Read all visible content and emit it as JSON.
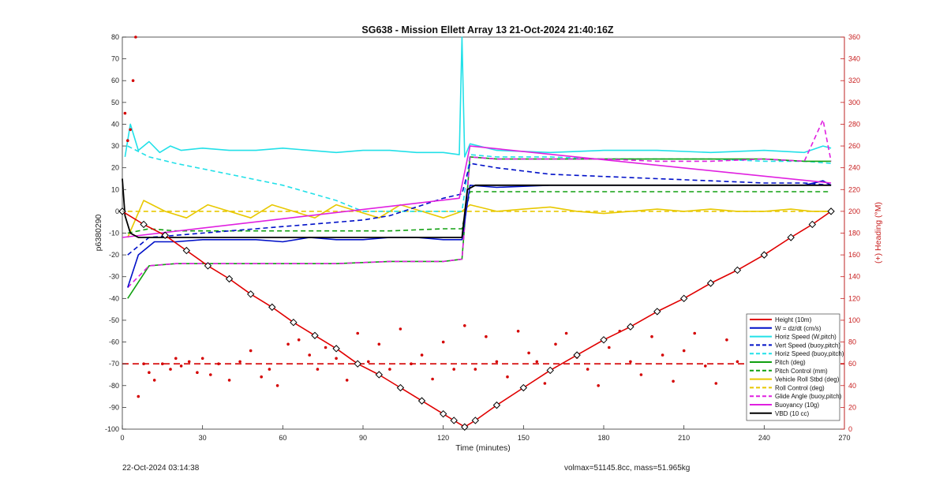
{
  "footer": {
    "timestamp": "22-Oct-2024 03:14:38",
    "vol_mass": "volmax=51145.8cc, mass=51.965kg"
  },
  "chart_data": {
    "type": "line",
    "title": "SG638 - Mission Ellett Array 13 21-Oct-2024 21:40:16Z",
    "xlabel": "Time (minutes)",
    "ylabel": "p6380290",
    "ylabel_right": "(+) Heading (°M)",
    "xlim": [
      0,
      270
    ],
    "ylim": [
      -100,
      80
    ],
    "ylim_right": [
      0,
      360
    ],
    "xticks": [
      "0",
      "30",
      "60",
      "90",
      "120",
      "150",
      "180",
      "210",
      "240",
      "270"
    ],
    "yticks": [
      "-100",
      "-90",
      "-80",
      "-70",
      "-60",
      "-50",
      "-40",
      "-30",
      "-20",
      "-10",
      "0",
      "10",
      "20",
      "30",
      "40",
      "50",
      "60",
      "70",
      "80"
    ],
    "yticks_right": [
      "0",
      "20",
      "40",
      "60",
      "80",
      "100",
      "120",
      "140",
      "160",
      "180",
      "200",
      "220",
      "240",
      "260",
      "280",
      "300",
      "320",
      "340",
      "360"
    ],
    "grid": false,
    "legend_position": "bottom-right",
    "colors": {
      "height": "#e00000",
      "w": "#0010c8",
      "horiz": "#22e0e8",
      "pitch": "#10a010",
      "roll": "#e8c800",
      "buoyancy": "#e020e0",
      "vbd": "#000000",
      "heading": "#d40000",
      "right_axis": "#c81e1e"
    },
    "series": [
      {
        "name": "Height (10m)",
        "x": [
          0,
          8,
          16,
          24,
          32,
          40,
          48,
          56,
          64,
          72,
          80,
          88,
          96,
          104,
          112,
          120,
          124,
          128,
          132,
          140,
          150,
          160,
          170,
          180,
          190,
          200,
          210,
          220,
          230,
          240,
          250,
          258,
          265
        ],
        "y": [
          0,
          -6,
          -11,
          -18,
          -25,
          -31,
          -38,
          -44,
          -51,
          -57,
          -63,
          -70,
          -75,
          -81,
          -87,
          -93,
          -96,
          -99,
          -96,
          -89,
          -81,
          -73,
          -66,
          -59,
          -53,
          -46,
          -40,
          -33,
          -27,
          -20,
          -12,
          -6,
          0
        ]
      },
      {
        "name": "W = dz/dt (cm/s)",
        "x": [
          2,
          6,
          12,
          20,
          30,
          40,
          50,
          60,
          70,
          80,
          90,
          100,
          110,
          120,
          127,
          130,
          140,
          160,
          180,
          200,
          220,
          240,
          255,
          262,
          265
        ],
        "y": [
          -35,
          -20,
          -14,
          -14,
          -13,
          -13,
          -13,
          -14,
          -12,
          -13,
          -13,
          -12,
          -12,
          -13,
          -13,
          12,
          11,
          12,
          12,
          12,
          12,
          12,
          12,
          14,
          12
        ]
      },
      {
        "name": "Horiz Speed (W,pitch)",
        "x": [
          1,
          3,
          6,
          10,
          14,
          18,
          22,
          30,
          40,
          50,
          60,
          70,
          80,
          90,
          100,
          110,
          120,
          126,
          127,
          128,
          130,
          140,
          160,
          180,
          200,
          220,
          240,
          255,
          262,
          265
        ],
        "y": [
          25,
          40,
          28,
          32,
          27,
          30,
          28,
          29,
          28,
          28,
          29,
          28,
          27,
          28,
          28,
          27,
          27,
          26,
          80,
          25,
          31,
          28,
          27,
          28,
          28,
          27,
          28,
          27,
          30,
          29
        ]
      },
      {
        "name": "Vert Speed (buoy,pitch)",
        "x": [
          2,
          10,
          20,
          30,
          40,
          50,
          60,
          70,
          80,
          90,
          100,
          110,
          120,
          127,
          130,
          140,
          160,
          180,
          200,
          220,
          240,
          255,
          265
        ],
        "y": [
          -20,
          -12,
          -11,
          -10,
          -9,
          -8,
          -7,
          -6,
          -5,
          -4,
          -2,
          2,
          6,
          8,
          22,
          20,
          17,
          16,
          15,
          14,
          13,
          13,
          12
        ]
      },
      {
        "name": "Horiz Speed (buoy,pitch)",
        "x": [
          2,
          10,
          20,
          40,
          60,
          80,
          90,
          100,
          110,
          120,
          127,
          130,
          140,
          160,
          180,
          200,
          220,
          240,
          255,
          265
        ],
        "y": [
          30,
          25,
          22,
          17,
          12,
          5,
          0,
          0,
          0,
          0,
          0,
          26,
          25,
          25,
          24,
          24,
          24,
          23,
          23,
          22
        ]
      },
      {
        "name": "Pitch (deg)",
        "x": [
          2,
          10,
          20,
          40,
          60,
          80,
          100,
          120,
          127,
          130,
          140,
          160,
          180,
          200,
          220,
          240,
          255,
          265
        ],
        "y": [
          -40,
          -25,
          -24,
          -24,
          -24,
          -24,
          -23,
          -23,
          -22,
          25,
          24,
          24,
          24,
          24,
          24,
          24,
          23,
          23
        ]
      },
      {
        "name": "Pitch Control (mm)",
        "x": [
          2,
          10,
          20,
          40,
          60,
          80,
          100,
          120,
          127,
          130,
          140,
          160,
          180,
          200,
          220,
          240,
          255,
          265
        ],
        "y": [
          -10,
          -8,
          -9,
          -9,
          -9,
          -9,
          -9,
          -8,
          -8,
          9,
          9,
          9,
          9,
          9,
          9,
          9,
          9,
          9
        ]
      },
      {
        "name": "Vehicle Roll Stbd (deg)",
        "x": [
          2,
          8,
          16,
          24,
          32,
          40,
          48,
          56,
          64,
          72,
          80,
          88,
          96,
          104,
          112,
          120,
          127,
          130,
          140,
          150,
          160,
          170,
          180,
          190,
          200,
          210,
          220,
          230,
          240,
          250,
          258,
          265
        ],
        "y": [
          -12,
          5,
          0,
          -3,
          3,
          0,
          -3,
          3,
          0,
          -3,
          3,
          0,
          -3,
          3,
          0,
          -3,
          0,
          3,
          0,
          1,
          2,
          0,
          -1,
          0,
          1,
          0,
          1,
          0,
          0,
          1,
          0,
          0
        ]
      },
      {
        "name": "Roll Control (deg)",
        "x": [
          2,
          10,
          20,
          40,
          60,
          80,
          100,
          120,
          127,
          130,
          140,
          160,
          180,
          200,
          220,
          240,
          255,
          265
        ],
        "y": [
          0,
          0,
          0,
          0,
          0,
          0,
          0,
          0,
          0,
          0,
          0,
          0,
          0,
          0,
          0,
          0,
          0,
          0
        ]
      },
      {
        "name": "Glide Angle (buoy,pitch)",
        "x": [
          2,
          10,
          20,
          40,
          60,
          80,
          100,
          120,
          127,
          130,
          140,
          160,
          180,
          200,
          220,
          240,
          255,
          262,
          265
        ],
        "y": [
          -35,
          -25,
          -24,
          -24,
          -24,
          -24,
          -23,
          -23,
          -22,
          25,
          24,
          24,
          24,
          23,
          23,
          24,
          23,
          42,
          23
        ]
      },
      {
        "name": "Buoyancy (10g)",
        "x": [
          0,
          126,
          130,
          265
        ],
        "y": [
          -12,
          6,
          30,
          13
        ]
      },
      {
        "name": "VBD (10 cc)",
        "x": [
          0,
          1,
          3,
          6,
          127,
          129,
          132,
          265
        ],
        "y": [
          15,
          -2,
          -10,
          -12,
          -12,
          10,
          12,
          12
        ]
      }
    ],
    "heading_series": {
      "name": "Heading",
      "x": [
        1,
        2,
        3,
        4,
        5,
        6,
        8,
        10,
        12,
        15,
        18,
        20,
        22,
        25,
        28,
        30,
        33,
        36,
        40,
        44,
        48,
        52,
        55,
        58,
        62,
        66,
        70,
        73,
        76,
        80,
        84,
        88,
        92,
        96,
        100,
        104,
        108,
        112,
        116,
        120,
        124,
        128,
        132,
        136,
        140,
        144,
        148,
        152,
        155,
        158,
        162,
        166,
        170,
        174,
        178,
        182,
        186,
        190,
        194,
        198,
        202,
        206,
        210,
        214,
        218,
        222,
        226,
        230,
        234,
        238,
        242,
        246,
        250,
        254,
        258,
        262,
        265
      ],
      "y": [
        290,
        265,
        275,
        320,
        360,
        30,
        60,
        52,
        45,
        60,
        55,
        65,
        58,
        62,
        52,
        65,
        50,
        60,
        45,
        62,
        72,
        48,
        55,
        40,
        78,
        82,
        68,
        55,
        75,
        65,
        45,
        88,
        62,
        78,
        55,
        92,
        60,
        68,
        46,
        80,
        55,
        95,
        55,
        85,
        62,
        48,
        90,
        70,
        62,
        42,
        78,
        88,
        66,
        55,
        40,
        75,
        90,
        62,
        50,
        85,
        68,
        44,
        72,
        88,
        58,
        42,
        82,
        62,
        48,
        90,
        70,
        52,
        86,
        58,
        78,
        48,
        68
      ]
    },
    "heading_reference": {
      "name": "Heading target",
      "value": 60
    }
  }
}
